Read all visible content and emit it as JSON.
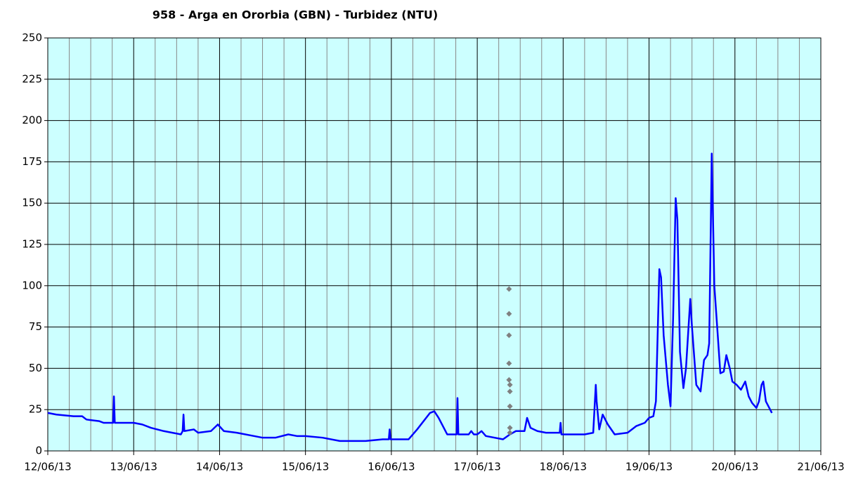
{
  "chart_data": {
    "type": "line",
    "title": "958 - Arga en Ororbia (GBN) - Turbidez (NTU)",
    "xlim": [
      0,
      9
    ],
    "xticks": [
      {
        "value": 0,
        "label": "12/06/13"
      },
      {
        "value": 1,
        "label": "13/06/13"
      },
      {
        "value": 2,
        "label": "14/06/13"
      },
      {
        "value": 3,
        "label": "15/06/13"
      },
      {
        "value": 4,
        "label": "16/06/13"
      },
      {
        "value": 5,
        "label": "17/06/13"
      },
      {
        "value": 6,
        "label": "18/06/13"
      },
      {
        "value": 7,
        "label": "19/06/13"
      },
      {
        "value": 8,
        "label": "20/06/13"
      },
      {
        "value": 9,
        "label": "21/06/13"
      }
    ],
    "ylim": [
      0,
      250
    ],
    "yticks": [
      0,
      25,
      50,
      75,
      100,
      125,
      150,
      175,
      200,
      225,
      250
    ],
    "grid": true,
    "background": "#ccffff",
    "series": [
      {
        "color": "#0000ff",
        "x": [
          0.0,
          0.1,
          0.3,
          0.4,
          0.45,
          0.6,
          0.65,
          0.76,
          0.77,
          0.78,
          0.9,
          1.0,
          1.1,
          1.2,
          1.35,
          1.45,
          1.55,
          1.57,
          1.58,
          1.59,
          1.7,
          1.75,
          1.9,
          1.98,
          2.05,
          2.2,
          2.4,
          2.5,
          2.65,
          2.8,
          2.9,
          3.0,
          3.2,
          3.4,
          3.55,
          3.7,
          3.9,
          3.97,
          3.98,
          3.99,
          4.2,
          4.3,
          4.45,
          4.5,
          4.55,
          4.65,
          4.76,
          4.77,
          4.78,
          4.9,
          4.93,
          4.96,
          5.0,
          5.05,
          5.1,
          5.3,
          5.38,
          5.45,
          5.55,
          5.58,
          5.62,
          5.7,
          5.8,
          5.96,
          5.97,
          5.98,
          6.25,
          6.35,
          6.38,
          6.39,
          6.42,
          6.46,
          6.52,
          6.6,
          6.75,
          6.85,
          6.95,
          7.0,
          7.05,
          7.08,
          7.12,
          7.14,
          7.17,
          7.22,
          7.25,
          7.28,
          7.31,
          7.33,
          7.36,
          7.4,
          7.43,
          7.48,
          7.5,
          7.55,
          7.6,
          7.64,
          7.68,
          7.7,
          7.72,
          7.73,
          7.76,
          7.8,
          7.83,
          7.87,
          7.9,
          7.94,
          7.97,
          8.02,
          8.07,
          8.12,
          8.16,
          8.2,
          8.25,
          8.28,
          8.31,
          8.33,
          8.36,
          8.43
        ],
        "values": [
          23,
          22,
          21,
          21,
          19,
          18,
          17,
          17,
          33,
          17,
          17,
          17,
          16,
          14,
          12,
          11,
          10,
          12,
          22,
          12,
          13,
          11,
          12,
          16,
          12,
          11,
          9,
          8,
          8,
          10,
          9,
          9,
          8,
          6,
          6,
          6,
          7,
          7,
          13,
          7,
          7,
          13,
          23,
          24,
          20,
          10,
          10,
          32,
          10,
          10,
          12,
          10,
          10,
          12,
          9,
          7,
          10,
          12,
          12,
          20,
          14,
          12,
          11,
          11,
          17,
          10,
          10,
          11,
          40,
          30,
          13,
          22,
          16,
          10,
          11,
          15,
          17,
          20,
          21,
          30,
          110,
          105,
          70,
          40,
          27,
          80,
          153,
          140,
          60,
          38,
          50,
          92,
          75,
          40,
          36,
          55,
          58,
          65,
          140,
          180,
          100,
          70,
          47,
          48,
          58,
          50,
          42,
          40,
          37,
          42,
          33,
          29,
          26,
          30,
          40,
          42,
          30,
          23
        ]
      },
      {
        "color": "#808080",
        "x": [
          5.37,
          5.37,
          5.37,
          5.37,
          5.37,
          5.38,
          5.38,
          5.38,
          5.38,
          5.38
        ],
        "values": [
          98,
          83,
          70,
          53,
          43,
          40,
          36,
          27,
          14,
          11
        ]
      }
    ]
  }
}
